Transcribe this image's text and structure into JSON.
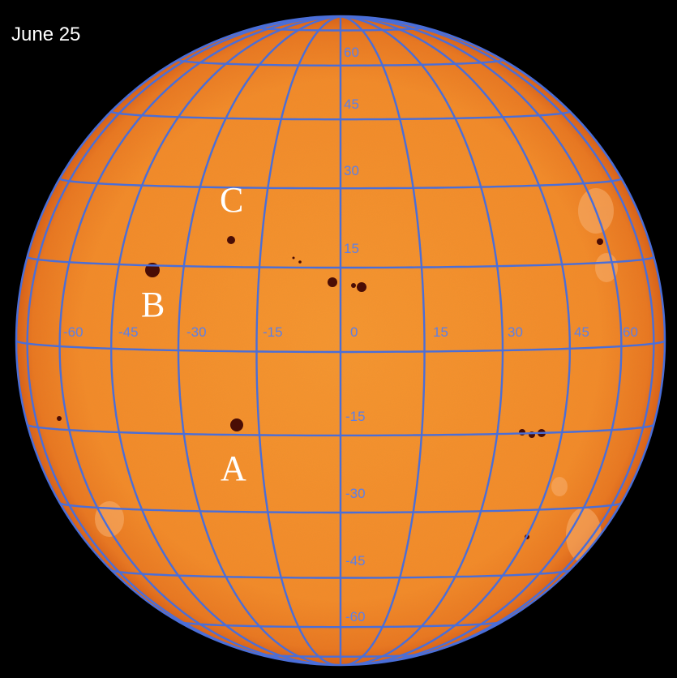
{
  "date": "June 25",
  "colors": {
    "background": "#000000",
    "sun_center": "#f5902c",
    "sun_limb": "#e0641a",
    "grid": "#4a6ed8",
    "label_grid": "#5b7fe8",
    "spot": "#4a0d05",
    "spot_letter": "#ffffff"
  },
  "grid": {
    "longitudes": [
      "-60",
      "-45",
      "-30",
      "-15",
      "0",
      "15",
      "30",
      "45",
      "60"
    ],
    "latitudes": [
      "60",
      "45",
      "30",
      "15",
      "-15",
      "-30",
      "-45",
      "-60"
    ]
  },
  "sunspots": [
    {
      "label": "A",
      "lat": -15,
      "lon": -22
    },
    {
      "label": "B",
      "lat": 12,
      "lon": -40
    },
    {
      "label": "C",
      "lat": 18,
      "lon": -22
    }
  ]
}
